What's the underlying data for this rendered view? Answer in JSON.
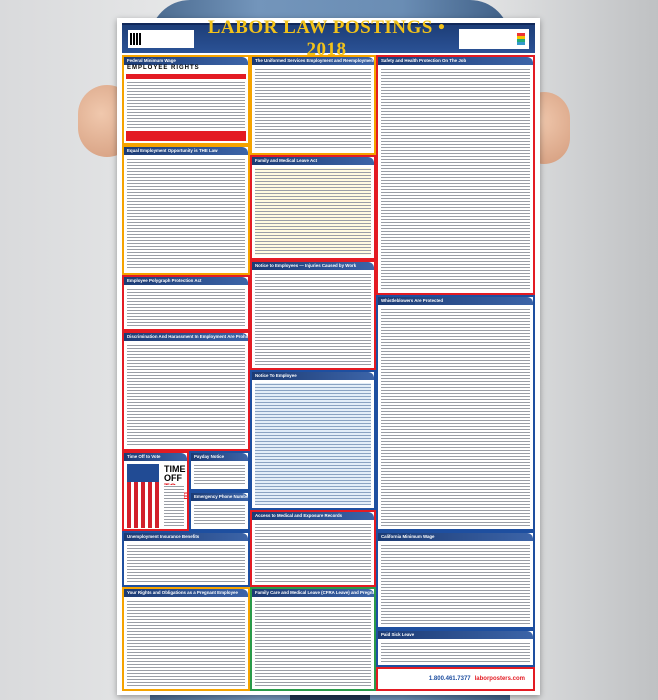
{
  "poster": {
    "title": "LABOR LAW POSTINGS • 2018",
    "left": [
      "Federal Minimum Wage",
      "Equal Employment Opportunity is THE Law",
      "Employee Polygraph Protection Act",
      "Discrimination And Harassment In Employment Are Prohibited By Law",
      "Time Off to Vote",
      "Payday Notice",
      "Emergency Phone Numbers",
      "Unemployment Insurance Benefits",
      "Your Rights and Obligations as a Pregnant Employee"
    ],
    "middle": [
      "The Uniformed Services Employment and Reemployment Rights Act",
      "Family and Medical Leave Act",
      "Notice to Employees — Injuries Caused by Work",
      "Notice To Employee",
      "Access to Medical and Exposure Records",
      "Family Care and Medical Leave (CFRA Leave) and Pregnancy Disability Leave"
    ],
    "right": [
      "Safety and Health Protection On The Job",
      "Whistleblowers Are Protected",
      "California Minimum Wage",
      "Paid Sick Leave"
    ],
    "min_wage_heading": "EMPLOYEE RIGHTS",
    "vote_heading_1": "TIME OFF",
    "vote_heading_2": "TO VOTE",
    "footer_phone": "1.800.461.7377",
    "footer_site": "laborposters.com"
  },
  "colors": {
    "banner": "#1d3e78",
    "title": "#f2c21a",
    "border": "#e31b23",
    "accent": "#1e4fa0"
  }
}
